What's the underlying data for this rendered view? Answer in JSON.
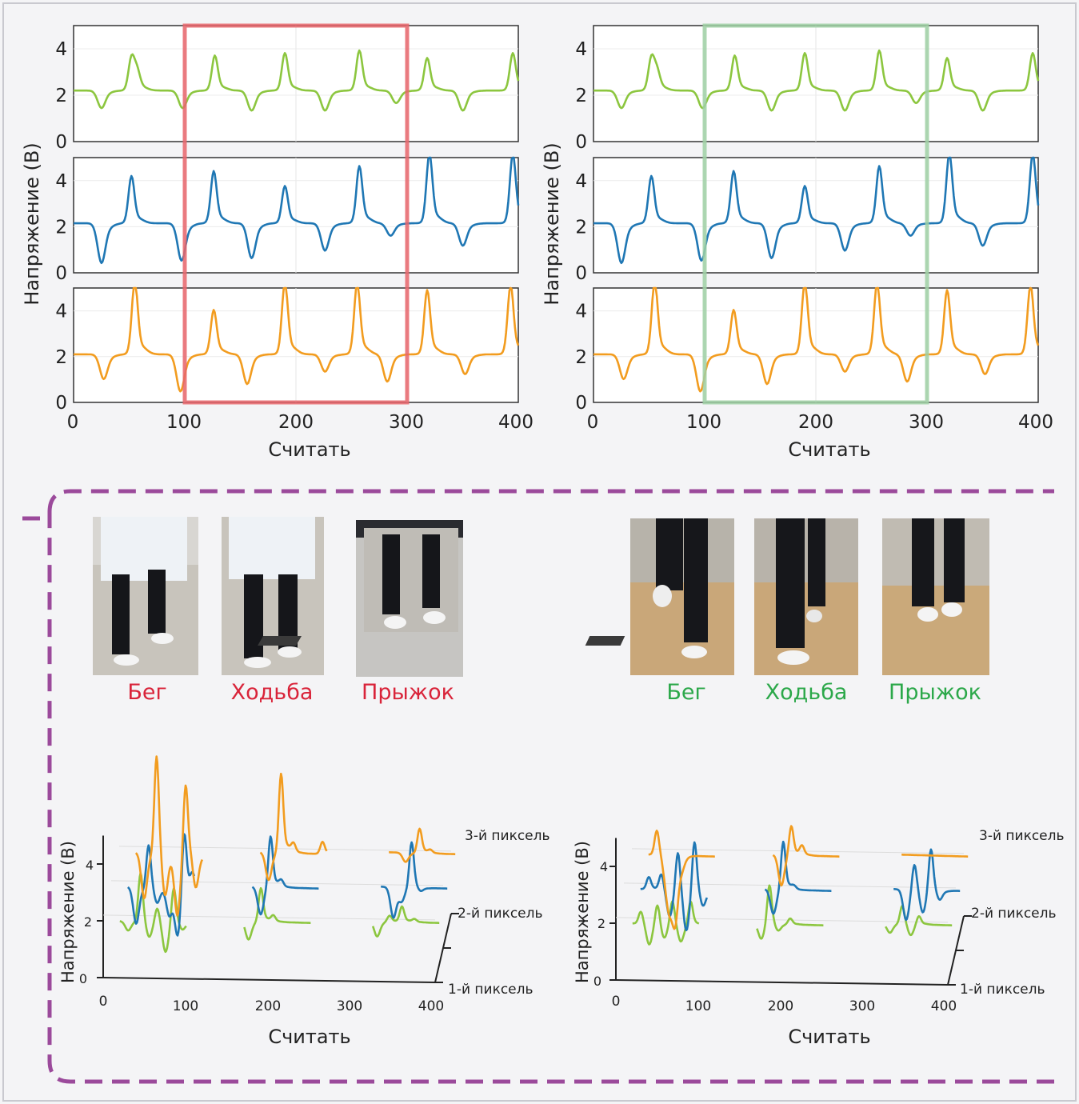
{
  "colors": {
    "green": "#8cc63f",
    "blue": "#1f77b4",
    "orange": "#f29c1f",
    "red_label": "#d9243a",
    "green_label": "#2ca84a",
    "red_window": "#e8656b",
    "green_window": "#9fd0a4",
    "dashed_border": "#9b4a9b",
    "panel_bg": "#f2f2f6"
  },
  "chart_data": [
    {
      "type": "line",
      "panel": "top-left",
      "ylabel": "Напряжение (В)",
      "xlabel": "Считать",
      "xlim": [
        0,
        400
      ],
      "xticks": [
        "0",
        "100",
        "200",
        "300",
        "400"
      ],
      "ylim": [
        0,
        5
      ],
      "yticks": [
        "0",
        "2",
        "4"
      ],
      "highlight_window": {
        "from": 100,
        "to": 300,
        "color": "red"
      },
      "series": [
        {
          "name": "green",
          "baseline": 2.2,
          "peaks": [
            [
              25,
              -0.7
            ],
            [
              52,
              1.3
            ],
            [
              57,
              0.7
            ],
            [
              98,
              -0.7
            ],
            [
              127,
              1.4
            ],
            [
              160,
              -0.8
            ],
            [
              190,
              1.5
            ],
            [
              226,
              -0.8
            ],
            [
              257,
              1.6
            ],
            [
              290,
              -0.5
            ],
            [
              318,
              1.3
            ],
            [
              350,
              -0.8
            ],
            [
              395,
              1.5
            ]
          ]
        },
        {
          "name": "blue",
          "baseline": 2.15,
          "peaks": [
            [
              25,
              -1.6
            ],
            [
              52,
              1.9
            ],
            [
              97,
              -1.5
            ],
            [
              126,
              2.1
            ],
            [
              160,
              -1.4
            ],
            [
              190,
              1.5
            ],
            [
              226,
              -1.1
            ],
            [
              257,
              2.3
            ],
            [
              285,
              -0.5
            ],
            [
              320,
              2.8
            ],
            [
              350,
              -0.9
            ],
            [
              395,
              2.8
            ]
          ]
        },
        {
          "name": "orange",
          "baseline": 2.1,
          "peaks": [
            [
              27,
              -1.0
            ],
            [
              55,
              3.0
            ],
            [
              96,
              -1.5
            ],
            [
              126,
              1.8
            ],
            [
              156,
              -1.2
            ],
            [
              190,
              2.9
            ],
            [
              226,
              -0.7
            ],
            [
              255,
              2.9
            ],
            [
              282,
              -1.1
            ],
            [
              318,
              2.6
            ],
            [
              352,
              -0.8
            ],
            [
              393,
              2.8
            ]
          ]
        }
      ]
    },
    {
      "type": "line",
      "panel": "top-right",
      "ylabel": "Напряжение (В)",
      "xlabel": "Считать",
      "xlim": [
        0,
        400
      ],
      "xticks": [
        "0",
        "100",
        "200",
        "300",
        "400"
      ],
      "ylim": [
        0,
        5
      ],
      "yticks": [
        "0",
        "2",
        "4"
      ],
      "highlight_window": {
        "from": 100,
        "to": 300,
        "color": "green"
      },
      "series": [
        {
          "name": "green",
          "baseline": 2.2,
          "peaks": [
            [
              25,
              -0.7
            ],
            [
              52,
              1.3
            ],
            [
              57,
              0.7
            ],
            [
              98,
              -0.7
            ],
            [
              127,
              1.4
            ],
            [
              160,
              -0.8
            ],
            [
              190,
              1.5
            ],
            [
              226,
              -0.8
            ],
            [
              257,
              1.6
            ],
            [
              290,
              -0.5
            ],
            [
              318,
              1.3
            ],
            [
              350,
              -0.8
            ],
            [
              395,
              1.5
            ]
          ]
        },
        {
          "name": "blue",
          "baseline": 2.15,
          "peaks": [
            [
              25,
              -1.6
            ],
            [
              52,
              1.9
            ],
            [
              97,
              -1.5
            ],
            [
              126,
              2.1
            ],
            [
              160,
              -1.4
            ],
            [
              190,
              1.5
            ],
            [
              226,
              -1.1
            ],
            [
              257,
              2.3
            ],
            [
              285,
              -0.5
            ],
            [
              320,
              2.8
            ],
            [
              350,
              -0.9
            ],
            [
              395,
              2.8
            ]
          ]
        },
        {
          "name": "orange",
          "baseline": 2.1,
          "peaks": [
            [
              27,
              -1.0
            ],
            [
              55,
              3.0
            ],
            [
              96,
              -1.5
            ],
            [
              126,
              1.8
            ],
            [
              156,
              -1.2
            ],
            [
              190,
              2.9
            ],
            [
              226,
              -0.7
            ],
            [
              255,
              2.9
            ],
            [
              282,
              -1.1
            ],
            [
              318,
              2.6
            ],
            [
              352,
              -0.8
            ],
            [
              393,
              2.8
            ]
          ]
        }
      ]
    },
    {
      "type": "line",
      "panel": "bottom-left-3d",
      "ylabel": "Напряжение (В)",
      "xlabel": "Считать",
      "xlim": [
        0,
        400
      ],
      "xticks": [
        "0",
        "100",
        "200",
        "300",
        "400"
      ],
      "ylim": [
        0,
        5
      ],
      "yticks": [
        "0",
        "2",
        "4"
      ],
      "depth_labels": [
        "1-й пиксель",
        "2-й пиксель",
        "3-й пиксель"
      ],
      "segments": [
        {
          "activity": "Бег",
          "x_from": 10,
          "x_to": 110,
          "pixel1": [
            [
              30,
              -0.3
            ],
            [
              45,
              1.6
            ],
            [
              55,
              -0.6
            ],
            [
              65,
              0.5
            ],
            [
              75,
              -1.0
            ],
            [
              85,
              1.2
            ],
            [
              95,
              -0.3
            ]
          ],
          "pixel2": [
            [
              30,
              -1.2
            ],
            [
              45,
              1.4
            ],
            [
              55,
              -0.6
            ],
            [
              70,
              -0.9
            ],
            [
              80,
              -1.5
            ],
            [
              88,
              2.0
            ],
            [
              98,
              0.4
            ]
          ],
          "pixel3": [
            [
              30,
              -1.5
            ],
            [
              45,
              3.2
            ],
            [
              55,
              -1.6
            ],
            [
              70,
              -2.0
            ],
            [
              80,
              2.4
            ],
            [
              92,
              -1.2
            ]
          ]
        },
        {
          "activity": "Ходьба",
          "x_from": 160,
          "x_to": 260,
          "pixel1": [
            [
              175,
              -0.6
            ],
            [
              190,
              1.1
            ],
            [
              205,
              0.2
            ]
          ],
          "pixel2": [
            [
              180,
              -0.9
            ],
            [
              192,
              1.7
            ],
            [
              205,
              0.2
            ]
          ],
          "pixel3": [
            [
              180,
              -0.9
            ],
            [
              195,
              2.6
            ],
            [
              210,
              0.3
            ],
            [
              245,
              0.4
            ]
          ]
        },
        {
          "activity": "Прыжок",
          "x_from": 315,
          "x_to": 415,
          "pixel1": [
            [
              330,
              -0.5
            ],
            [
              345,
              0.2
            ],
            [
              360,
              0.5
            ],
            [
              375,
              0.1
            ]
          ],
          "pixel2": [
            [
              340,
              -1.0
            ],
            [
              350,
              -0.4
            ],
            [
              362,
              1.5
            ],
            [
              372,
              -0.2
            ]
          ],
          "pixel3": [
            [
              345,
              -0.3
            ],
            [
              362,
              0.8
            ],
            [
              375,
              0.1
            ]
          ]
        }
      ]
    },
    {
      "type": "line",
      "panel": "bottom-right-3d",
      "ylabel": "Напряжение (В)",
      "xlabel": "Считать",
      "xlim": [
        0,
        400
      ],
      "xticks": [
        "0",
        "100",
        "200",
        "300",
        "400"
      ],
      "ylim": [
        0,
        5
      ],
      "yticks": [
        "0",
        "2",
        "4"
      ],
      "depth_labels": [
        "1-й пиксель",
        "2-й пиксель",
        "3-й пиксель"
      ],
      "segments": [
        {
          "activity": "Бег",
          "x_from": 10,
          "x_to": 110,
          "pixel1": [
            [
              30,
              0.4
            ],
            [
              40,
              -0.7
            ],
            [
              50,
              0.7
            ],
            [
              58,
              -0.5
            ],
            [
              68,
              0.8
            ],
            [
              78,
              -0.6
            ],
            [
              90,
              0.8
            ]
          ],
          "pixel2": [
            [
              30,
              0.4
            ],
            [
              45,
              0.5
            ],
            [
              55,
              -0.9
            ],
            [
              65,
              1.3
            ],
            [
              75,
              -1.4
            ],
            [
              85,
              1.7
            ],
            [
              95,
              -0.6
            ]
          ],
          "pixel3": [
            [
              30,
              0.8
            ],
            [
              40,
              -0.6
            ],
            [
              45,
              -1.5
            ],
            [
              52,
              -2.0
            ],
            [
              60,
              -0.3
            ]
          ]
        },
        {
          "activity": "Ходьба",
          "x_from": 160,
          "x_to": 260,
          "pixel1": [
            [
              175,
              -0.5
            ],
            [
              185,
              1.3
            ],
            [
              195,
              -0.3
            ],
            [
              210,
              0.2
            ]
          ],
          "pixel2": [
            [
              180,
              -0.8
            ],
            [
              192,
              1.6
            ],
            [
              205,
              0.1
            ]
          ],
          "pixel3": [
            [
              180,
              -1.0
            ],
            [
              192,
              1.0
            ],
            [
              205,
              0.3
            ]
          ]
        },
        {
          "activity": "Прыжок",
          "x_from": 315,
          "x_to": 415,
          "pixel1": [
            [
              330,
              -0.3
            ],
            [
              345,
              0.6
            ],
            [
              355,
              -0.4
            ],
            [
              365,
              0.3
            ]
          ],
          "pixel2": [
            [
              340,
              -1.0
            ],
            [
              350,
              0.9
            ],
            [
              360,
              -0.8
            ],
            [
              370,
              1.4
            ],
            [
              380,
              -0.4
            ]
          ],
          "pixel3": [
            [
              345,
              0.0
            ],
            [
              365,
              0.0
            ]
          ]
        }
      ]
    }
  ],
  "activities_left": {
    "run": "Бег",
    "walk": "Ходьба",
    "jump": "Прыжок"
  },
  "activities_right": {
    "run": "Бег",
    "walk": "Ходьба",
    "jump": "Прыжок"
  },
  "axis_text": {
    "ylabel": "Напряжение (В)",
    "xlabel": "Считать",
    "pixel1": "1-й пиксель",
    "pixel2": "2-й пиксель",
    "pixel3": "3-й пиксель"
  }
}
